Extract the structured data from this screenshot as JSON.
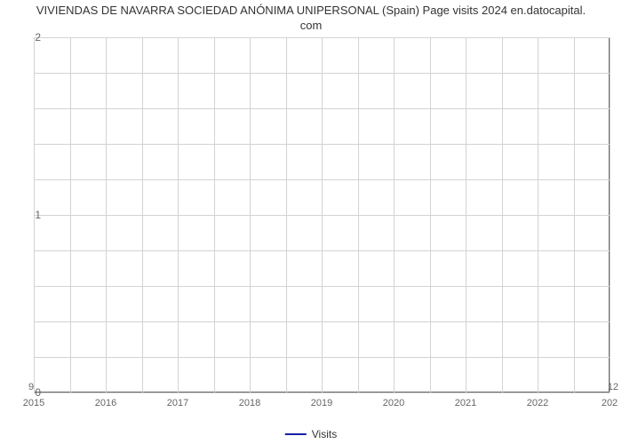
{
  "chart": {
    "type": "line",
    "title_line1": "VIVIENDAS DE NAVARRA SOCIEDAD ANÓNIMA UNIPERSONAL (Spain) Page visits 2024 en.datocapital.",
    "title_line2": "com",
    "title_fontsize": 13,
    "title_color": "#333333",
    "background_color": "#ffffff",
    "plot_border_color": "#666666",
    "grid_color": "#d3d3d3",
    "x_categories": [
      "2015",
      "2016",
      "2017",
      "2018",
      "2019",
      "2020",
      "2021",
      "2022",
      "202"
    ],
    "y_ticks": [
      0,
      1,
      2
    ],
    "ylim": [
      0,
      2
    ],
    "y_minor_count": 4,
    "x_minor_count": 1,
    "corner_left_label": "9",
    "corner_right_label": "12",
    "series": {
      "name": "Visits",
      "color": "#1520a6",
      "line_width": 2,
      "points_x": [
        0,
        0.02,
        0.98,
        1.0
      ],
      "points_y": [
        1.0,
        0.0,
        0.0,
        1.0
      ]
    },
    "legend": {
      "label": "Visits",
      "color": "#1520a6",
      "fontsize": 12
    },
    "tick_label_color": "#666666",
    "tick_label_fontsize": 12,
    "xtick_label_fontsize": 11
  }
}
